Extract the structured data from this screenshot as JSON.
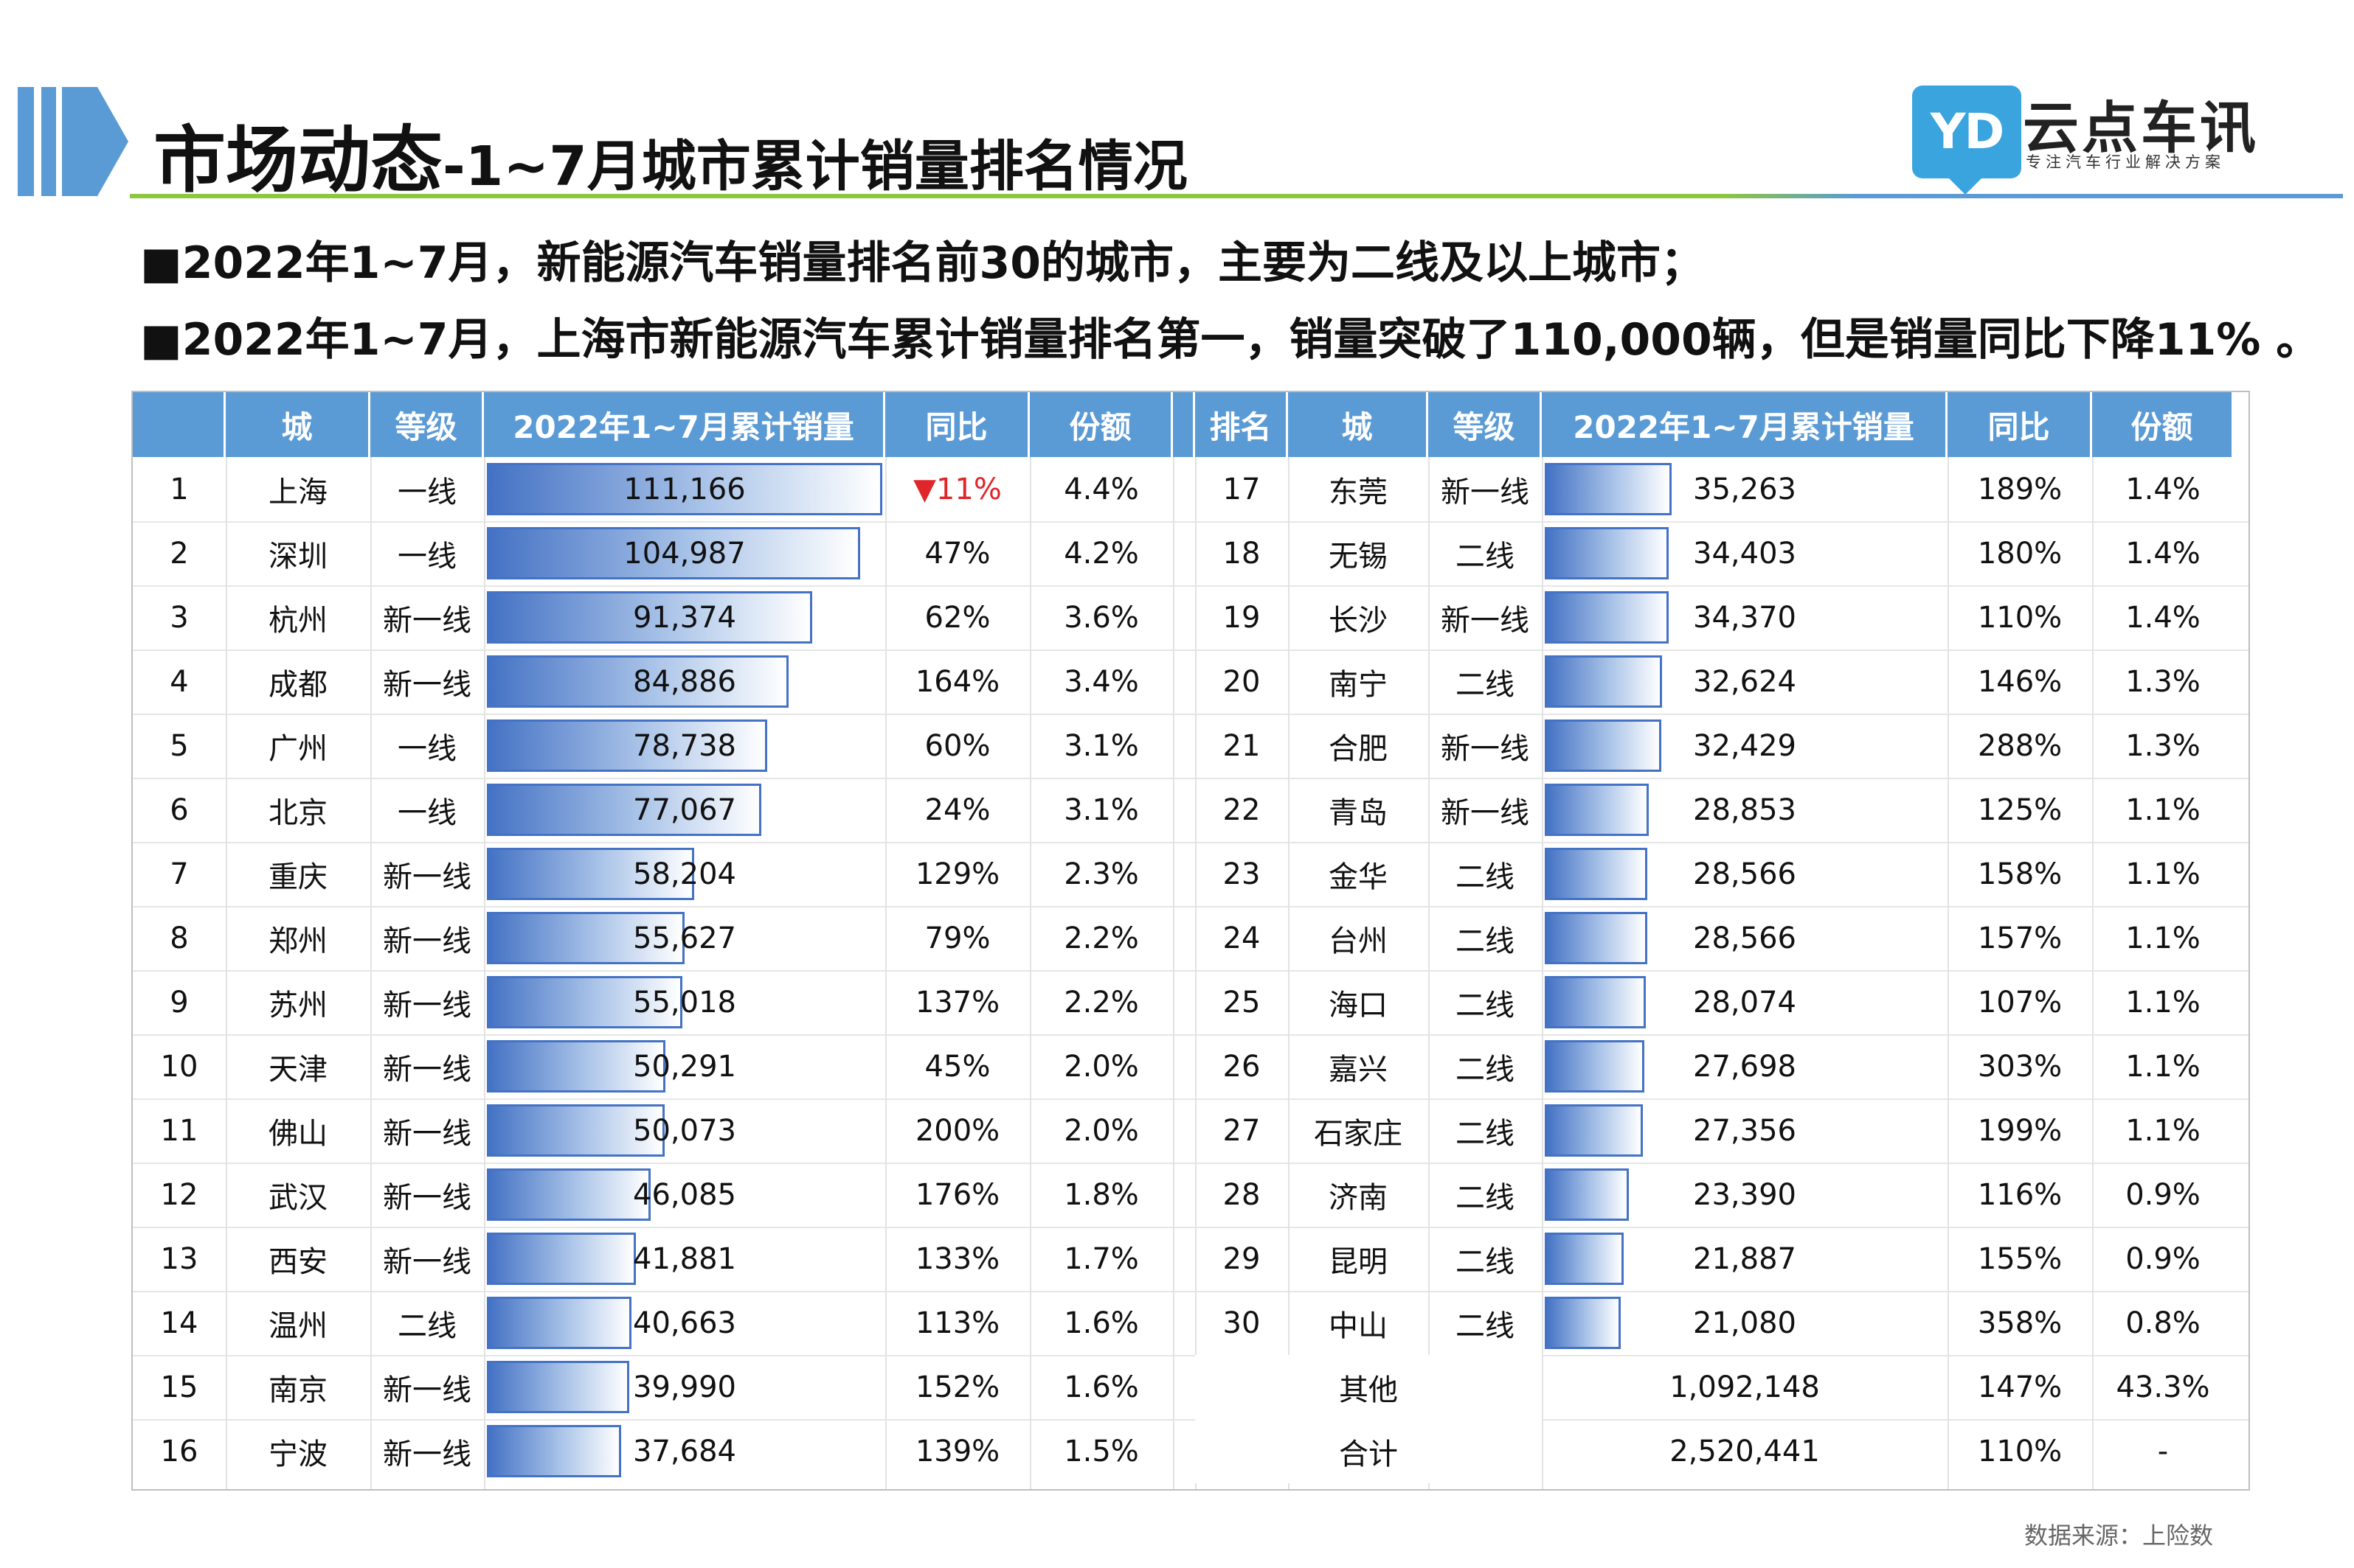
{
  "header": {
    "title_main": "市场动态",
    "title_sub": "-1~7月城市累计销量排名情况"
  },
  "logo": {
    "glyph": "YD",
    "name": "云点车讯",
    "slogan": "专注汽车行业解决方案",
    "color": "#3aa4de"
  },
  "bullets": [
    "■2022年1~7月，新能源汽车销量排名前30的城市，主要为二线及以上城市；",
    "■2022年1~7月，上海市新能源汽车累计销量排名第一，销量突破了110,000辆，但是销量同比下降11% 。"
  ],
  "table": {
    "left_headers": [
      "",
      "城",
      "等级",
      "2022年1~7月累计销量",
      "同比",
      "份额"
    ],
    "right_headers": [
      "排名",
      "城",
      "等级",
      "2022年1~7月累计销量",
      "同比",
      "份额"
    ],
    "left_rows": [
      {
        "rank": "1",
        "city": "上海",
        "tier": "一线",
        "sales": "111,166",
        "sales_num": 111166,
        "yoy": "▼11%",
        "yoy_negative": true,
        "share": "4.4%"
      },
      {
        "rank": "2",
        "city": "深圳",
        "tier": "一线",
        "sales": "104,987",
        "sales_num": 104987,
        "yoy": "47%",
        "share": "4.2%"
      },
      {
        "rank": "3",
        "city": "杭州",
        "tier": "新一线",
        "sales": "91,374",
        "sales_num": 91374,
        "yoy": "62%",
        "share": "3.6%"
      },
      {
        "rank": "4",
        "city": "成都",
        "tier": "新一线",
        "sales": "84,886",
        "sales_num": 84886,
        "yoy": "164%",
        "share": "3.4%"
      },
      {
        "rank": "5",
        "city": "广州",
        "tier": "一线",
        "sales": "78,738",
        "sales_num": 78738,
        "yoy": "60%",
        "share": "3.1%"
      },
      {
        "rank": "6",
        "city": "北京",
        "tier": "一线",
        "sales": "77,067",
        "sales_num": 77067,
        "yoy": "24%",
        "share": "3.1%"
      },
      {
        "rank": "7",
        "city": "重庆",
        "tier": "新一线",
        "sales": "58,204",
        "sales_num": 58204,
        "yoy": "129%",
        "share": "2.3%"
      },
      {
        "rank": "8",
        "city": "郑州",
        "tier": "新一线",
        "sales": "55,627",
        "sales_num": 55627,
        "yoy": "79%",
        "share": "2.2%"
      },
      {
        "rank": "9",
        "city": "苏州",
        "tier": "新一线",
        "sales": "55,018",
        "sales_num": 55018,
        "yoy": "137%",
        "share": "2.2%"
      },
      {
        "rank": "10",
        "city": "天津",
        "tier": "新一线",
        "sales": "50,291",
        "sales_num": 50291,
        "yoy": "45%",
        "share": "2.0%"
      },
      {
        "rank": "11",
        "city": "佛山",
        "tier": "新一线",
        "sales": "50,073",
        "sales_num": 50073,
        "yoy": "200%",
        "share": "2.0%"
      },
      {
        "rank": "12",
        "city": "武汉",
        "tier": "新一线",
        "sales": "46,085",
        "sales_num": 46085,
        "yoy": "176%",
        "share": "1.8%"
      },
      {
        "rank": "13",
        "city": "西安",
        "tier": "新一线",
        "sales": "41,881",
        "sales_num": 41881,
        "yoy": "133%",
        "share": "1.7%"
      },
      {
        "rank": "14",
        "city": "温州",
        "tier": "二线",
        "sales": "40,663",
        "sales_num": 40663,
        "yoy": "113%",
        "share": "1.6%"
      },
      {
        "rank": "15",
        "city": "南京",
        "tier": "新一线",
        "sales": "39,990",
        "sales_num": 39990,
        "yoy": "152%",
        "share": "1.6%"
      },
      {
        "rank": "16",
        "city": "宁波",
        "tier": "新一线",
        "sales": "37,684",
        "sales_num": 37684,
        "yoy": "139%",
        "share": "1.5%"
      }
    ],
    "right_rows": [
      {
        "rank": "17",
        "city": "东莞",
        "tier": "新一线",
        "sales": "35,263",
        "sales_num": 35263,
        "yoy": "189%",
        "share": "1.4%"
      },
      {
        "rank": "18",
        "city": "无锡",
        "tier": "二线",
        "sales": "34,403",
        "sales_num": 34403,
        "yoy": "180%",
        "share": "1.4%"
      },
      {
        "rank": "19",
        "city": "长沙",
        "tier": "新一线",
        "sales": "34,370",
        "sales_num": 34370,
        "yoy": "110%",
        "share": "1.4%"
      },
      {
        "rank": "20",
        "city": "南宁",
        "tier": "二线",
        "sales": "32,624",
        "sales_num": 32624,
        "yoy": "146%",
        "share": "1.3%"
      },
      {
        "rank": "21",
        "city": "合肥",
        "tier": "新一线",
        "sales": "32,429",
        "sales_num": 32429,
        "yoy": "288%",
        "share": "1.3%"
      },
      {
        "rank": "22",
        "city": "青岛",
        "tier": "新一线",
        "sales": "28,853",
        "sales_num": 28853,
        "yoy": "125%",
        "share": "1.1%"
      },
      {
        "rank": "23",
        "city": "金华",
        "tier": "二线",
        "sales": "28,566",
        "sales_num": 28566,
        "yoy": "158%",
        "share": "1.1%"
      },
      {
        "rank": "24",
        "city": "台州",
        "tier": "二线",
        "sales": "28,566",
        "sales_num": 28566,
        "yoy": "157%",
        "share": "1.1%"
      },
      {
        "rank": "25",
        "city": "海口",
        "tier": "二线",
        "sales": "28,074",
        "sales_num": 28074,
        "yoy": "107%",
        "share": "1.1%"
      },
      {
        "rank": "26",
        "city": "嘉兴",
        "tier": "二线",
        "sales": "27,698",
        "sales_num": 27698,
        "yoy": "303%",
        "share": "1.1%"
      },
      {
        "rank": "27",
        "city": "石家庄",
        "tier": "二线",
        "sales": "27,356",
        "sales_num": 27356,
        "yoy": "199%",
        "share": "1.1%"
      },
      {
        "rank": "28",
        "city": "济南",
        "tier": "二线",
        "sales": "23,390",
        "sales_num": 23390,
        "yoy": "116%",
        "share": "0.9%"
      },
      {
        "rank": "29",
        "city": "昆明",
        "tier": "二线",
        "sales": "21,887",
        "sales_num": 21887,
        "yoy": "155%",
        "share": "0.9%"
      },
      {
        "rank": "30",
        "city": "中山",
        "tier": "二线",
        "sales": "21,080",
        "sales_num": 21080,
        "yoy": "358%",
        "share": "0.8%"
      }
    ],
    "summary_rows": [
      {
        "label": "其他",
        "sales": "1,092,148",
        "yoy": "147%",
        "share": "43.3%"
      },
      {
        "label": "合计",
        "sales": "2,520,441",
        "yoy": "110%",
        "share": "-"
      }
    ],
    "bar_max": 111166,
    "header_color": "#5b9bd5",
    "bar_color": "#4472c4",
    "negative_color": "#e0262a"
  },
  "footer": {
    "source": "数据来源：上险数"
  }
}
